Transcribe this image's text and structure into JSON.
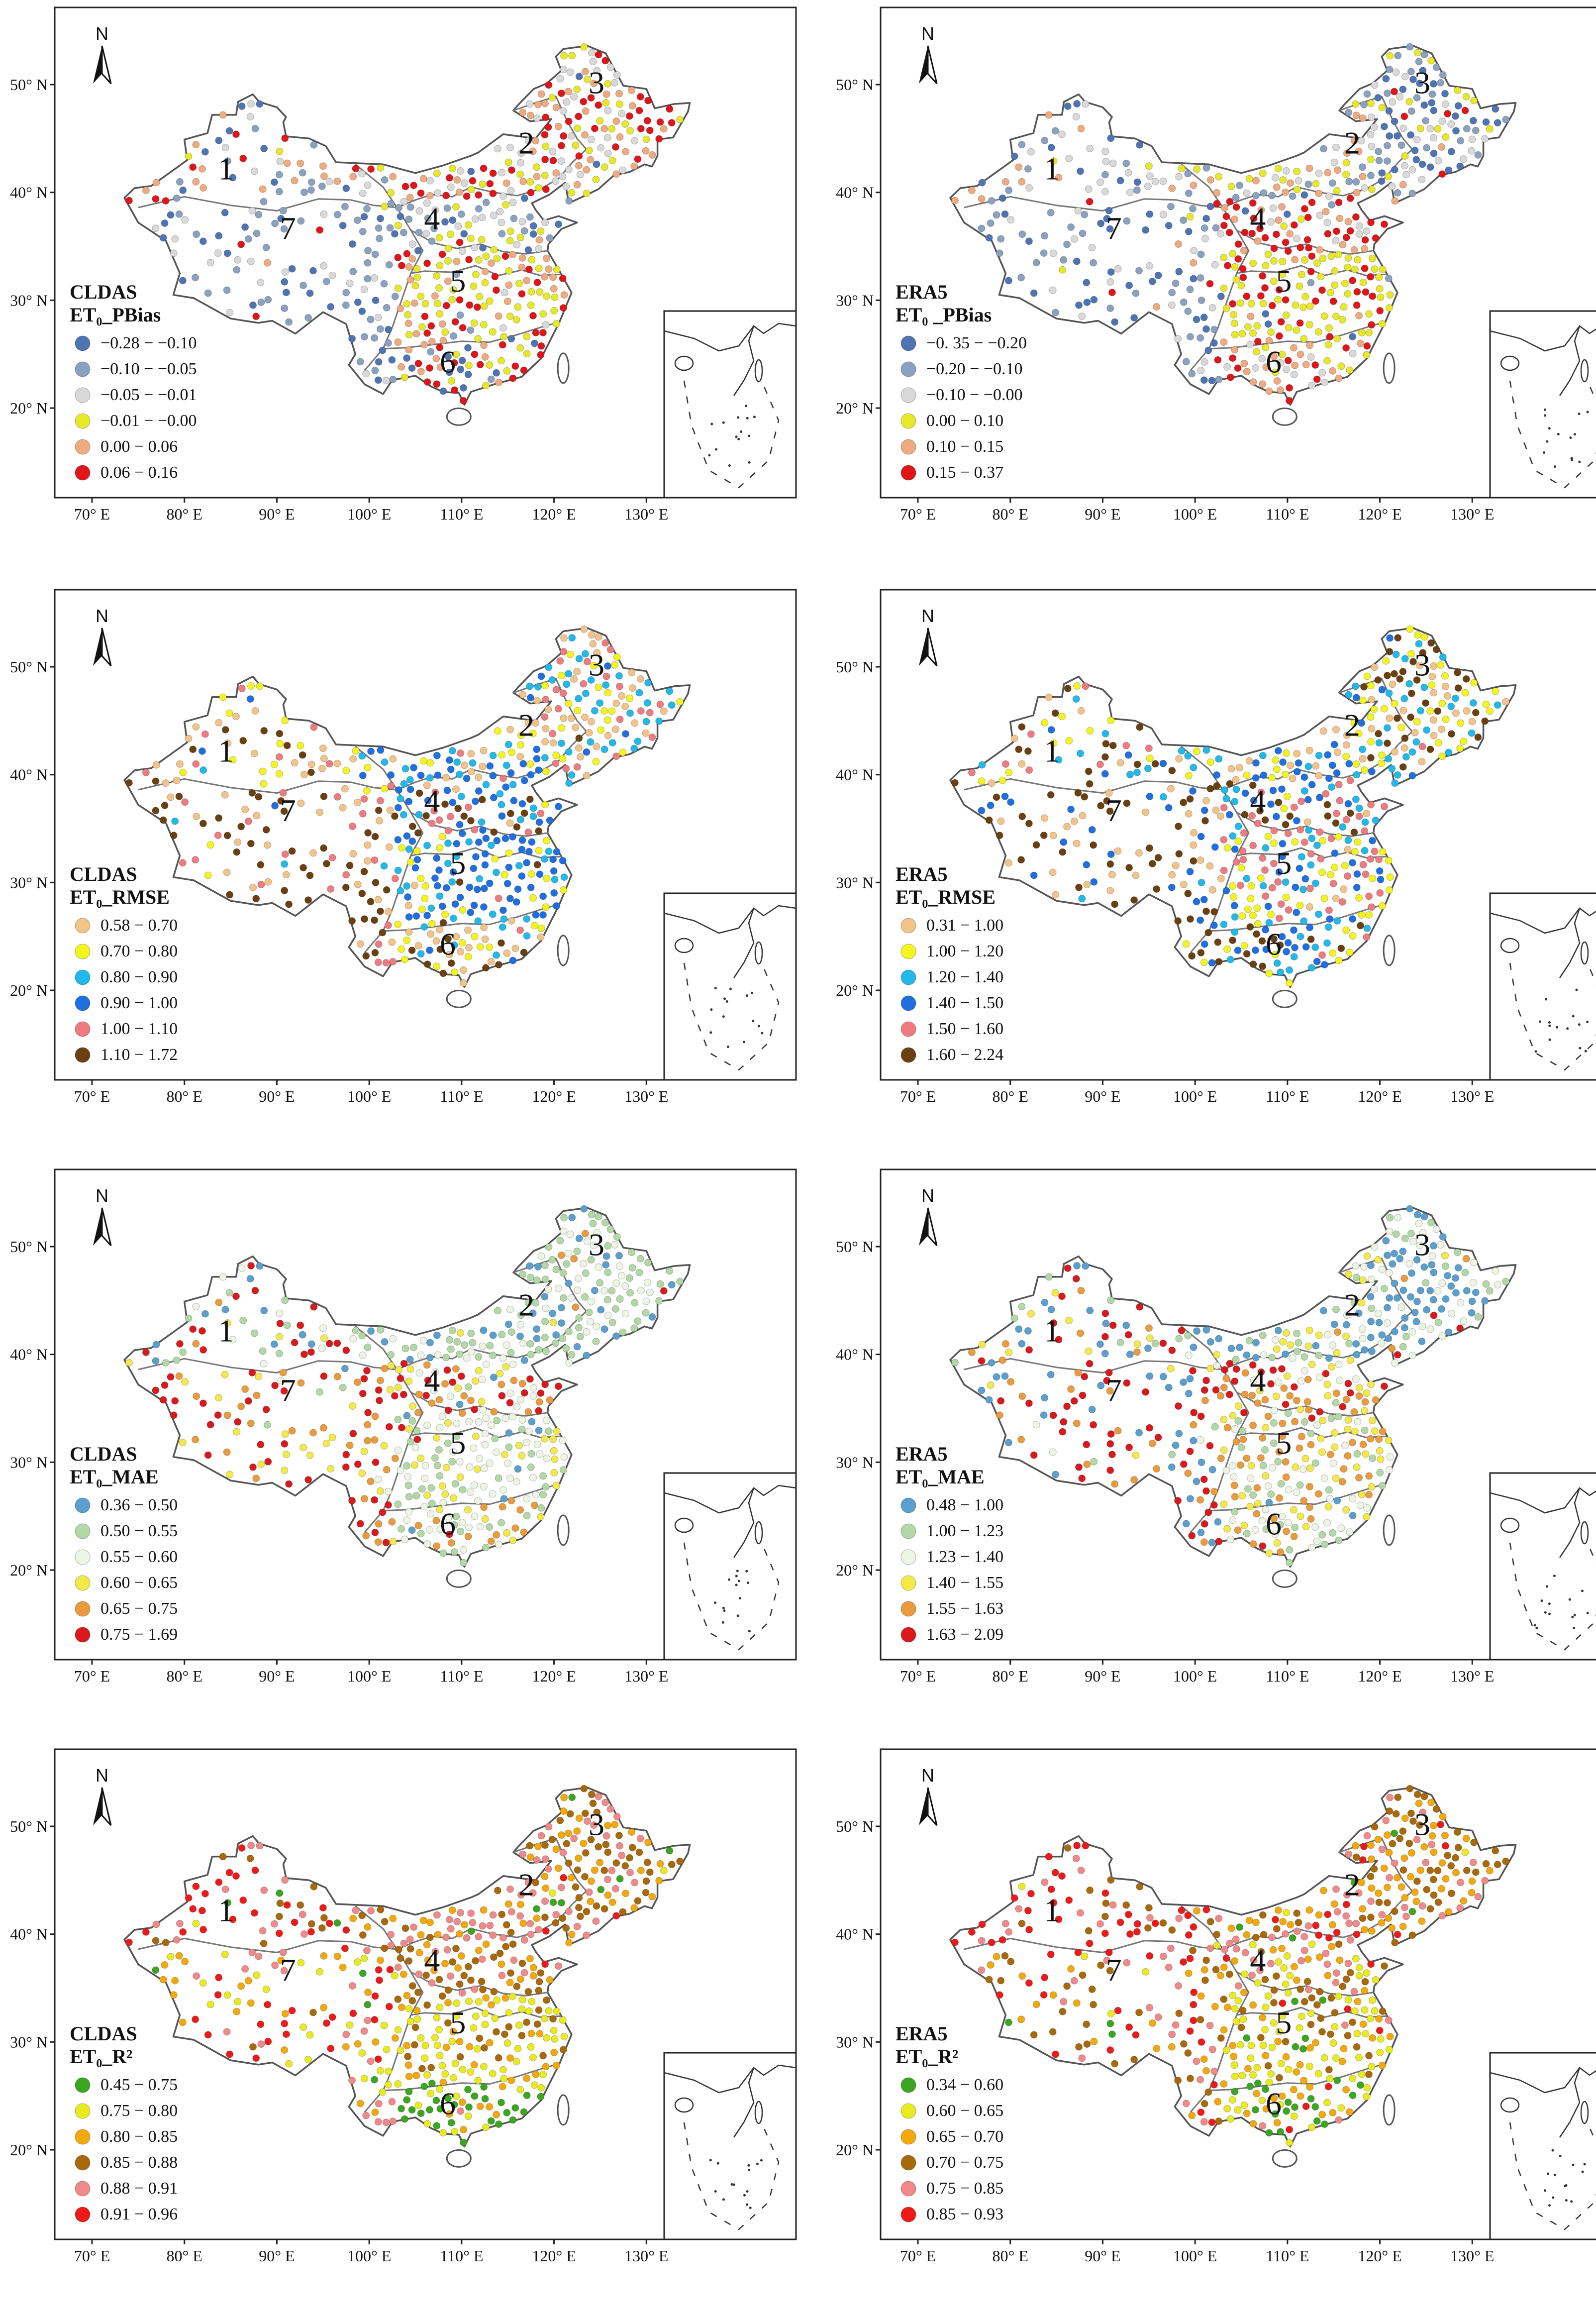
{
  "figure": {
    "north_label": "N",
    "axis": {
      "x_ticks": [
        "70° E",
        "80° E",
        "90° E",
        "100° E",
        "110° E",
        "120° E",
        "130° E"
      ],
      "y_ticks": [
        "50° N",
        "40° N",
        "30° N",
        "20° N"
      ]
    },
    "region_labels": [
      "1",
      "2",
      "3",
      "4",
      "5",
      "6",
      "7"
    ]
  },
  "chart_data": [
    {
      "type": "map",
      "id": "cldas_pbias",
      "title_line1": "CLDAS",
      "title_line2": "ET₀_PBias",
      "legend": [
        {
          "label": "−0.28 − −0.10",
          "color": "#4f74b3"
        },
        {
          "label": "−0.10 − −0.05",
          "color": "#8aa1c0"
        },
        {
          "label": "−0.05 − −0.01",
          "color": "#d9d9d9"
        },
        {
          "label": "−0.01 − −0.00",
          "color": "#e8e82a"
        },
        {
          "label": "0.00 − 0.06",
          "color": "#efab7f"
        },
        {
          "label": "0.06 − 0.16",
          "color": "#e0151a"
        }
      ]
    },
    {
      "type": "map",
      "id": "era5_pbias",
      "title_line1": "ERA5",
      "title_line2": "ET₀ _PBias",
      "legend": [
        {
          "label": "−0. 35 − −0.20",
          "color": "#4f74b3"
        },
        {
          "label": "−0.20 − −0.10",
          "color": "#8aa1c0"
        },
        {
          "label": "−0.10 − −0.00",
          "color": "#d9d9d9"
        },
        {
          "label": "0.00 − 0.10",
          "color": "#e8e82a"
        },
        {
          "label": "0.10 − 0.15",
          "color": "#efab7f"
        },
        {
          "label": "0.15 − 0.37",
          "color": "#e0151a"
        }
      ]
    },
    {
      "type": "map",
      "id": "cldas_rmse",
      "title_line1": "CLDAS",
      "title_line2": "ET₀_RMSE",
      "legend": [
        {
          "label": "0.58 − 0.70",
          "color": "#f3c48a"
        },
        {
          "label": "0.70 − 0.80",
          "color": "#f4f41f"
        },
        {
          "label": "0.80 − 0.90",
          "color": "#21b8ea"
        },
        {
          "label": "0.90 − 1.00",
          "color": "#1f6fe0"
        },
        {
          "label": "1.00 − 1.10",
          "color": "#ee7b80"
        },
        {
          "label": "1.10 − 1.72",
          "color": "#6b4010"
        }
      ]
    },
    {
      "type": "map",
      "id": "era5_rmse",
      "title_line1": "ERA5",
      "title_line2": "ET₀_RMSE",
      "legend": [
        {
          "label": "0.31 − 1.00",
          "color": "#f3c48a"
        },
        {
          "label": "1.00 − 1.20",
          "color": "#f4f41f"
        },
        {
          "label": "1.20 − 1.40",
          "color": "#21b8ea"
        },
        {
          "label": "1.40 − 1.50",
          "color": "#1f6fe0"
        },
        {
          "label": "1.50 − 1.60",
          "color": "#ee7b80"
        },
        {
          "label": "1.60 − 2.24",
          "color": "#6b4010"
        }
      ]
    },
    {
      "type": "map",
      "id": "cldas_mae",
      "title_line1": "CLDAS",
      "title_line2": "ET₀_MAE",
      "legend": [
        {
          "label": "0.36 − 0.50",
          "color": "#5a9fcd"
        },
        {
          "label": "0.50 − 0.55",
          "color": "#b2d8a6"
        },
        {
          "label": "0.55 − 0.60",
          "color": "#eef5e4"
        },
        {
          "label": "0.60 − 0.65",
          "color": "#f3ea4a"
        },
        {
          "label": "0.65 − 0.75",
          "color": "#eb9b3c"
        },
        {
          "label": "0.75 − 1.69",
          "color": "#d9191c"
        }
      ]
    },
    {
      "type": "map",
      "id": "era5_mae",
      "title_line1": "ERA5",
      "title_line2": "ET₀_MAE",
      "legend": [
        {
          "label": "0.48 − 1.00",
          "color": "#5a9fcd"
        },
        {
          "label": "1.00 − 1.23",
          "color": "#b2d8a6"
        },
        {
          "label": "1.23 − 1.40",
          "color": "#eef5e4"
        },
        {
          "label": "1.40 − 1.55",
          "color": "#f3ea4a"
        },
        {
          "label": "1.55 − 1.63",
          "color": "#eb9b3c"
        },
        {
          "label": "1.63 − 2.09",
          "color": "#d9191c"
        }
      ]
    },
    {
      "type": "map",
      "id": "cldas_r2",
      "title_line1": "CLDAS",
      "title_line2": "ET₀_R²",
      "legend": [
        {
          "label": "0.45 − 0.75",
          "color": "#3ba61f"
        },
        {
          "label": "0.75 − 0.80",
          "color": "#eaea21"
        },
        {
          "label": "0.80 − 0.85",
          "color": "#f3a90c"
        },
        {
          "label": "0.85 − 0.88",
          "color": "#a8690a"
        },
        {
          "label": "0.88 − 0.91",
          "color": "#f08a8a"
        },
        {
          "label": "0.91 − 0.96",
          "color": "#ee1a1a"
        }
      ]
    },
    {
      "type": "map",
      "id": "era5_r2",
      "title_line1": "ERA5",
      "title_line2": "ET₀_R²",
      "legend": [
        {
          "label": "0.34 − 0.60",
          "color": "#3ba61f"
        },
        {
          "label": "0.60 − 0.65",
          "color": "#eaea21"
        },
        {
          "label": "0.65 − 0.70",
          "color": "#f3a90c"
        },
        {
          "label": "0.70 − 0.75",
          "color": "#a8690a"
        },
        {
          "label": "0.75 − 0.85",
          "color": "#f08a8a"
        },
        {
          "label": "0.85 − 0.93",
          "color": "#ee1a1a"
        }
      ]
    }
  ]
}
